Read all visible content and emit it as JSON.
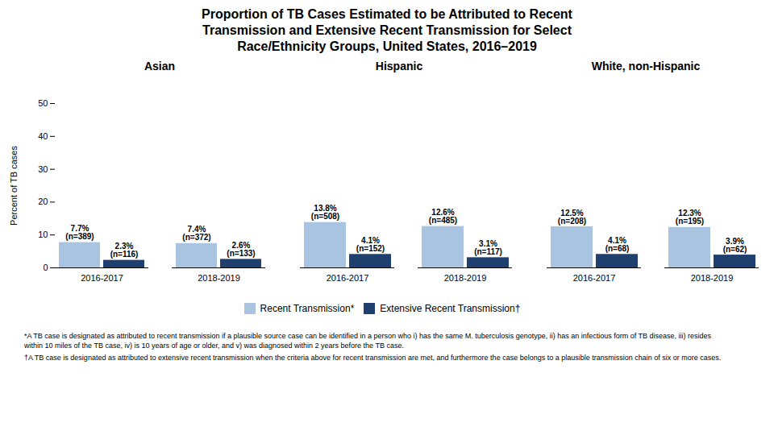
{
  "title": "Proportion of TB Cases Estimated to be Attributed to Recent\nTransmission and Extensive Recent Transmission for Select\nRace/Ethnicity Groups, United States, 2016–2019",
  "legend": "bottom",
  "annotations": [
    "*A TB case is designated as attributed to recent transmission if a plausible source case can be identified in a person who i) has the same M. tuberculosis genotype, ii) has an infectious form of TB disease, iii) resides\nwithin 10 miles of the TB case, iv) is 10 years of age or older, and v) was diagnosed within 2 years before the TB case.",
    "†A TB case is designated as attributed to extensive recent transmission when the criteria above for recent transmission are met, and furthermore the case belongs to a plausible transmission chain of six or more cases."
  ],
  "chart_data": [
    {
      "type": "bar",
      "title": "Asian",
      "categories": [
        "2016-2017",
        "2018-2019"
      ],
      "series": [
        {
          "name": "Recent Transmission*",
          "color": "#a8c4e0",
          "values": [
            7.7,
            7.4
          ],
          "value_labels": [
            "7.7%",
            "7.4%"
          ],
          "n_labels": [
            "(n=389)",
            "(n=372)"
          ]
        },
        {
          "name": "Extensive Recent Transmission†",
          "color": "#1f3f6e",
          "values": [
            2.3,
            2.6
          ],
          "value_labels": [
            "2.3%",
            "2.6%"
          ],
          "n_labels": [
            "(n=116)",
            "(n=133)"
          ]
        }
      ],
      "ylabel": "Percent of TB cases",
      "ylim": [
        0,
        50
      ],
      "yticks": [
        0,
        10,
        20,
        30,
        40,
        50
      ],
      "grid": false,
      "data_labels": true
    },
    {
      "type": "bar",
      "title": "Hispanic",
      "categories": [
        "2016-2017",
        "2018-2019"
      ],
      "series": [
        {
          "name": "Recent Transmission*",
          "color": "#a8c4e0",
          "values": [
            13.8,
            12.6
          ],
          "value_labels": [
            "13.8%",
            "12.6%"
          ],
          "n_labels": [
            "(n=508)",
            "(n=485)"
          ]
        },
        {
          "name": "Extensive Recent Transmission†",
          "color": "#1f3f6e",
          "values": [
            4.1,
            3.1
          ],
          "value_labels": [
            "4.1%",
            "3.1%"
          ],
          "n_labels": [
            "(n=152)",
            "(n=117)"
          ]
        }
      ],
      "ylim": [
        0,
        50
      ],
      "yticks": [
        0,
        10,
        20,
        30,
        40,
        50
      ],
      "grid": false,
      "data_labels": true,
      "tick_labels": "x"
    },
    {
      "type": "bar",
      "title": "White, non-Hispanic",
      "categories": [
        "2016-2017",
        "2018-2019"
      ],
      "series": [
        {
          "name": "Recent Transmission*",
          "color": "#a8c4e0",
          "values": [
            12.5,
            12.3
          ],
          "value_labels": [
            "12.5%",
            "12.3%"
          ],
          "n_labels": [
            "(n=208)",
            "(n=195)"
          ]
        },
        {
          "name": "Extensive Recent Transmission†",
          "color": "#1f3f6e",
          "values": [
            4.1,
            3.9
          ],
          "value_labels": [
            "4.1%",
            "3.9%"
          ],
          "n_labels": [
            "(n=68)",
            "(n=62)"
          ]
        }
      ],
      "ylim": [
        0,
        50
      ],
      "yticks": [
        0,
        10,
        20,
        30,
        40,
        50
      ],
      "grid": false,
      "data_labels": true,
      "tick_labels": "x"
    }
  ]
}
